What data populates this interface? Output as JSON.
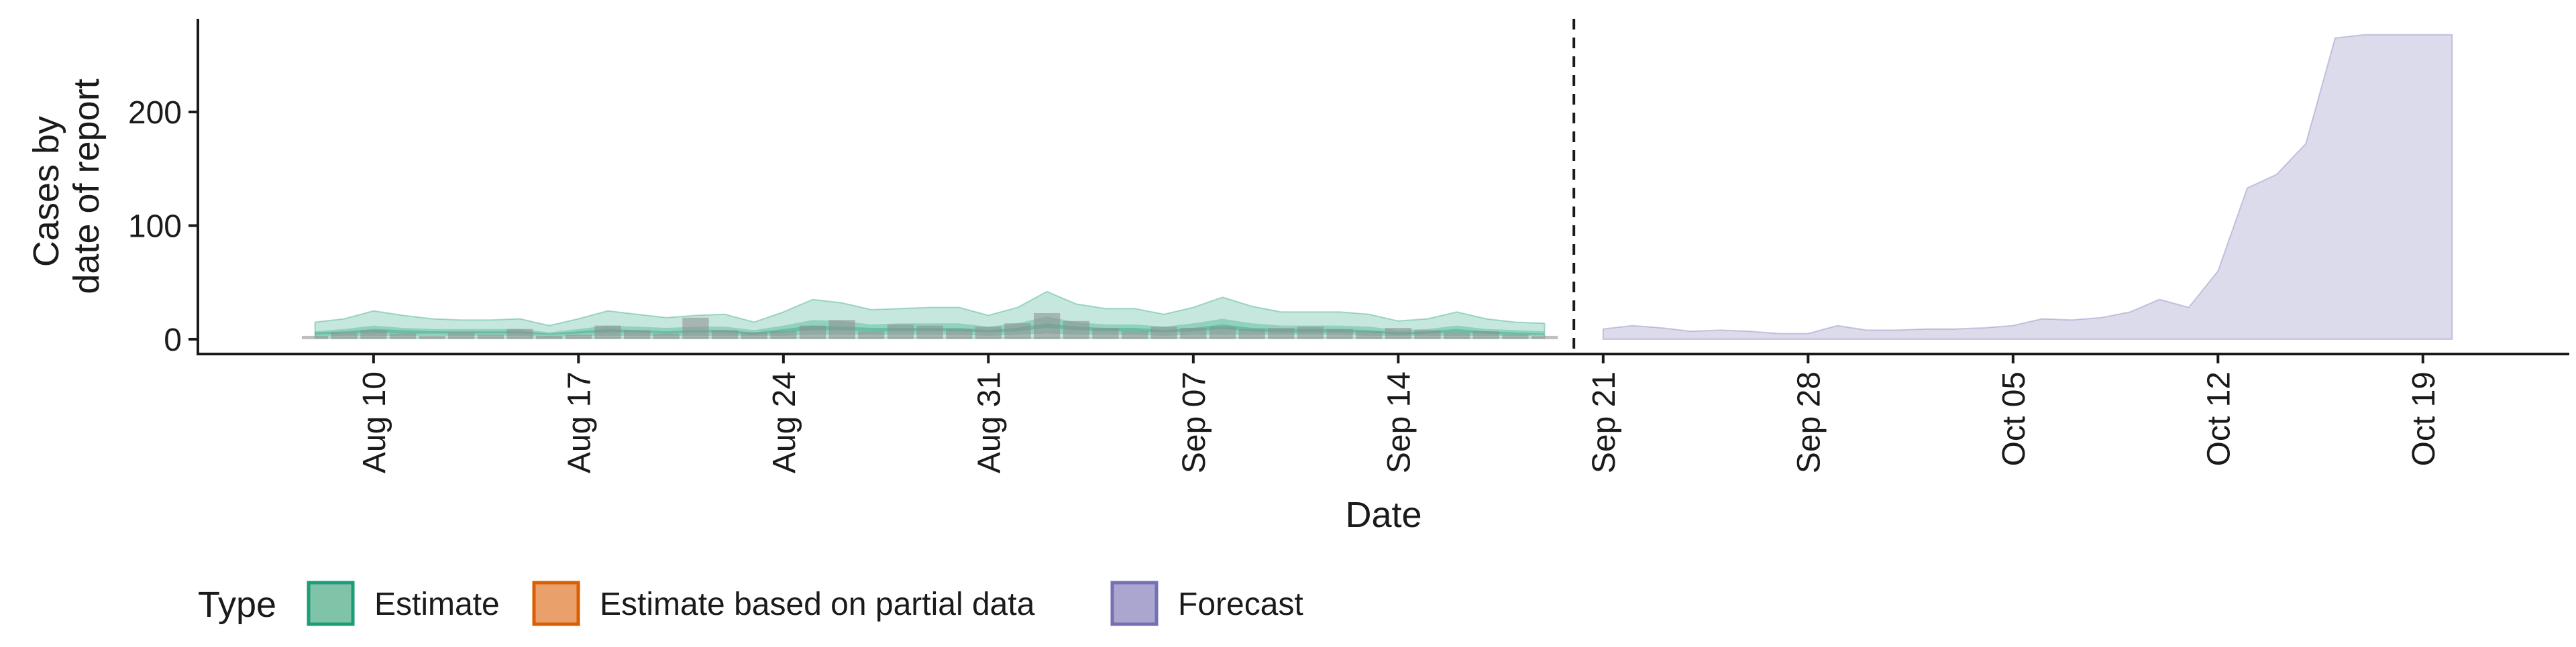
{
  "chart_data": {
    "type": "area",
    "xlabel": "Date",
    "ylabel_lines": [
      "Cases by",
      "date of report"
    ],
    "x_range": [
      "2020-08-04",
      "2020-10-24"
    ],
    "ylim": [
      -13,
      282
    ],
    "y_ticks": [
      0,
      100,
      200
    ],
    "x_ticks": [
      {
        "date": "2020-08-10",
        "label": "Aug 10"
      },
      {
        "date": "2020-08-17",
        "label": "Aug 17"
      },
      {
        "date": "2020-08-24",
        "label": "Aug 24"
      },
      {
        "date": "2020-08-31",
        "label": "Aug 31"
      },
      {
        "date": "2020-09-07",
        "label": "Sep 07"
      },
      {
        "date": "2020-09-14",
        "label": "Sep 14"
      },
      {
        "date": "2020-09-21",
        "label": "Sep 21"
      },
      {
        "date": "2020-09-28",
        "label": "Sep 28"
      },
      {
        "date": "2020-10-05",
        "label": "Oct 05"
      },
      {
        "date": "2020-10-12",
        "label": "Oct 12"
      },
      {
        "date": "2020-10-19",
        "label": "Oct 19"
      }
    ],
    "forecast_start": "2020-09-20",
    "grid": false,
    "legend": {
      "position": "bottom-left",
      "title": "Type",
      "items": [
        {
          "label": "Estimate",
          "fill": "#7fc4a8",
          "stroke": "#1b9e77"
        },
        {
          "label": "Estimate based on partial data",
          "fill": "#eaa06a",
          "stroke": "#d95f02"
        },
        {
          "label": "Forecast",
          "fill": "#aaa6cf",
          "stroke": "#7570b3"
        }
      ]
    },
    "colors": {
      "estimate": "#1b9e77",
      "forecast": "#7570b3",
      "reported": "#8c8c8c"
    },
    "estimate": {
      "dates": [
        "2020-08-08",
        "2020-08-09",
        "2020-08-10",
        "2020-08-11",
        "2020-08-12",
        "2020-08-13",
        "2020-08-14",
        "2020-08-15",
        "2020-08-16",
        "2020-08-17",
        "2020-08-18",
        "2020-08-19",
        "2020-08-20",
        "2020-08-21",
        "2020-08-22",
        "2020-08-23",
        "2020-08-24",
        "2020-08-25",
        "2020-08-26",
        "2020-08-27",
        "2020-08-28",
        "2020-08-29",
        "2020-08-30",
        "2020-08-31",
        "2020-09-01",
        "2020-09-02",
        "2020-09-03",
        "2020-09-04",
        "2020-09-05",
        "2020-09-06",
        "2020-09-07",
        "2020-09-08",
        "2020-09-09",
        "2020-09-10",
        "2020-09-11",
        "2020-09-12",
        "2020-09-13",
        "2020-09-14",
        "2020-09-15",
        "2020-09-16",
        "2020-09-17",
        "2020-09-18",
        "2020-09-19"
      ],
      "lower_90": [
        1,
        1,
        1,
        1,
        1,
        1,
        1,
        1,
        1,
        1,
        1,
        1,
        1,
        1,
        1,
        1,
        1,
        1,
        1,
        1,
        1,
        1,
        1,
        1,
        1,
        1,
        1,
        1,
        1,
        1,
        1,
        1,
        1,
        1,
        1,
        1,
        1,
        1,
        1,
        1,
        1,
        1,
        1
      ],
      "upper_90": [
        15,
        18,
        25,
        21,
        18,
        17,
        17,
        18,
        12,
        18,
        25,
        22,
        19,
        21,
        22,
        15,
        24,
        35,
        32,
        26,
        27,
        28,
        28,
        21,
        28,
        42,
        31,
        27,
        27,
        22,
        28,
        37,
        29,
        24,
        24,
        24,
        22,
        16,
        18,
        24,
        18,
        15,
        14
      ],
      "lower_50": [
        2,
        3,
        3,
        3,
        3,
        3,
        3,
        3,
        2,
        3,
        3,
        3,
        3,
        3,
        3,
        3,
        3,
        4,
        4,
        4,
        4,
        4,
        4,
        3,
        4,
        5,
        4,
        4,
        4,
        3,
        4,
        4,
        4,
        4,
        4,
        4,
        3,
        3,
        3,
        3,
        3,
        3,
        3
      ],
      "upper_50": [
        7,
        9,
        12,
        10,
        9,
        9,
        9,
        9,
        6,
        9,
        12,
        11,
        10,
        11,
        11,
        8,
        12,
        17,
        16,
        13,
        14,
        14,
        14,
        11,
        14,
        20,
        15,
        13,
        13,
        11,
        14,
        18,
        14,
        12,
        12,
        12,
        11,
        8,
        9,
        12,
        9,
        8,
        7
      ],
      "lower_20": [
        4,
        5,
        6,
        5,
        5,
        5,
        5,
        5,
        4,
        5,
        6,
        6,
        5,
        6,
        6,
        4,
        6,
        8,
        8,
        7,
        7,
        7,
        7,
        6,
        7,
        10,
        8,
        7,
        7,
        6,
        7,
        9,
        7,
        6,
        6,
        6,
        6,
        4,
        5,
        6,
        5,
        4,
        4
      ],
      "upper_20": [
        6,
        7,
        9,
        8,
        7,
        7,
        7,
        7,
        5,
        7,
        9,
        8,
        7,
        8,
        8,
        6,
        9,
        12,
        11,
        10,
        10,
        10,
        10,
        8,
        10,
        14,
        11,
        10,
        10,
        8,
        10,
        13,
        10,
        9,
        9,
        9,
        8,
        6,
        7,
        9,
        7,
        6,
        5
      ]
    },
    "forecast": {
      "dates": [
        "2020-09-21",
        "2020-09-22",
        "2020-09-23",
        "2020-09-24",
        "2020-09-25",
        "2020-09-26",
        "2020-09-27",
        "2020-09-28",
        "2020-09-29",
        "2020-09-30",
        "2020-10-01",
        "2020-10-02",
        "2020-10-03",
        "2020-10-04",
        "2020-10-05",
        "2020-10-06",
        "2020-10-07",
        "2020-10-08",
        "2020-10-09",
        "2020-10-10",
        "2020-10-11",
        "2020-10-12",
        "2020-10-13",
        "2020-10-14",
        "2020-10-15",
        "2020-10-16",
        "2020-10-17",
        "2020-10-18",
        "2020-10-19",
        "2020-10-20"
      ],
      "lower": [
        0,
        0,
        0,
        0,
        0,
        0,
        0,
        0,
        0,
        0,
        0,
        0,
        0,
        0,
        0,
        0,
        0,
        0,
        0,
        0,
        0,
        0,
        0,
        0,
        0,
        0,
        0,
        0,
        0,
        0
      ],
      "upper": [
        9,
        12,
        10,
        7,
        8,
        7,
        5,
        5,
        12,
        8,
        8,
        9,
        9,
        10,
        12,
        18,
        17,
        19,
        24,
        35,
        28,
        60,
        133,
        145,
        172,
        265,
        268,
        268,
        268,
        268
      ]
    },
    "reported": {
      "dates": [
        "2020-08-08",
        "2020-08-09",
        "2020-08-10",
        "2020-08-11",
        "2020-08-12",
        "2020-08-13",
        "2020-08-14",
        "2020-08-15",
        "2020-08-16",
        "2020-08-17",
        "2020-08-18",
        "2020-08-19",
        "2020-08-20",
        "2020-08-21",
        "2020-08-22",
        "2020-08-23",
        "2020-08-24",
        "2020-08-25",
        "2020-08-26",
        "2020-08-27",
        "2020-08-28",
        "2020-08-29",
        "2020-08-30",
        "2020-08-31",
        "2020-09-01",
        "2020-09-02",
        "2020-09-03",
        "2020-09-04",
        "2020-09-05",
        "2020-09-06",
        "2020-09-07",
        "2020-09-08",
        "2020-09-09",
        "2020-09-10",
        "2020-09-11",
        "2020-09-12",
        "2020-09-13",
        "2020-09-14",
        "2020-09-15",
        "2020-09-16",
        "2020-09-17",
        "2020-09-18",
        "2020-09-19"
      ],
      "values": [
        3,
        6,
        8,
        5,
        3,
        6,
        4,
        9,
        3,
        4,
        12,
        8,
        5,
        19,
        8,
        6,
        7,
        12,
        17,
        7,
        13,
        12,
        9,
        11,
        14,
        23,
        16,
        10,
        7,
        11,
        10,
        11,
        9,
        10,
        11,
        9,
        7,
        10,
        8,
        6,
        7,
        4,
        3
      ]
    }
  }
}
